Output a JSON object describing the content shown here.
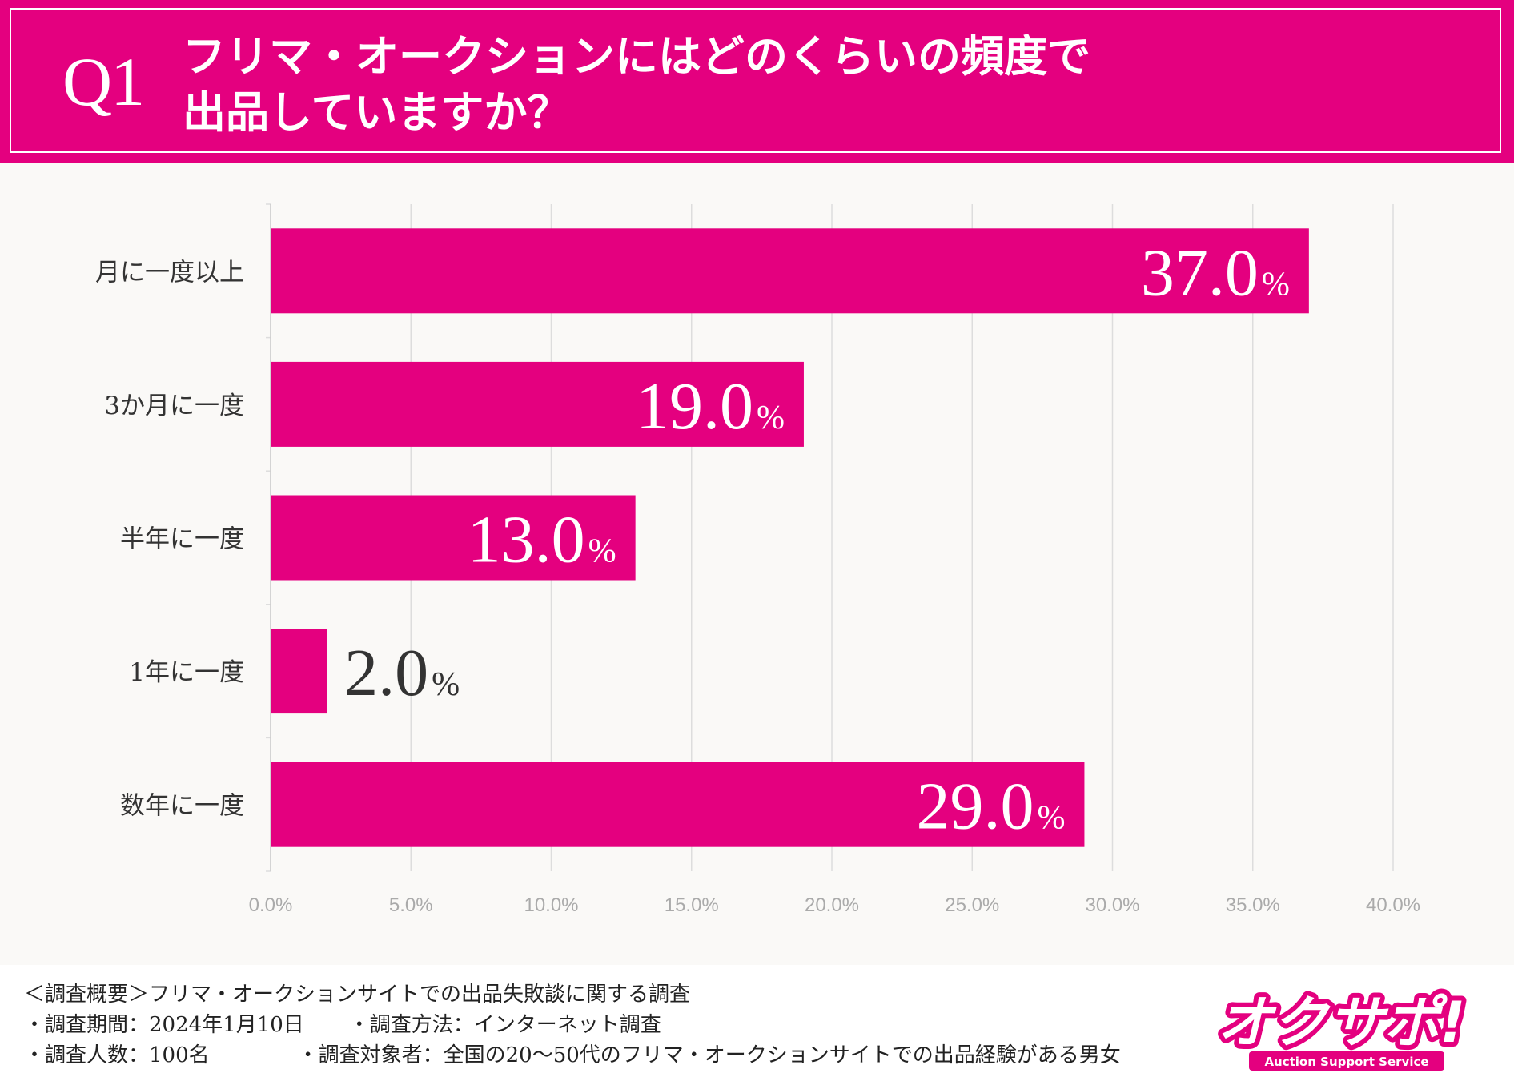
{
  "header": {
    "q_label": "Q1",
    "line1": "フリマ・オークションにはどのくらいの頻度で",
    "line2": "出品していますか？"
  },
  "colors": {
    "brand": "#e4007f",
    "bar": "#e4007f",
    "grid": "#dddddd",
    "axis_text": "#aaaaaa",
    "label_text": "#333333"
  },
  "chart_data": {
    "type": "bar",
    "orientation": "horizontal",
    "categories": [
      "月に一度以上",
      "3か月に一度",
      "半年に一度",
      "1年に一度",
      "数年に一度"
    ],
    "values": [
      37.0,
      19.0,
      13.0,
      2.0,
      29.0
    ],
    "value_labels": [
      "37.0",
      "19.0",
      "13.0",
      "2.0",
      "29.0"
    ],
    "value_unit": "%",
    "xlim": [
      0,
      40
    ],
    "xticks": [
      "0.0%",
      "5.0%",
      "10.0%",
      "15.0%",
      "20.0%",
      "25.0%",
      "30.0%",
      "35.0%",
      "40.0%"
    ],
    "grid": true,
    "title": "",
    "xlabel": "",
    "ylabel": ""
  },
  "footer": {
    "summary": "＜調査概要＞フリマ・オークションサイトでの出品失敗談に関する調査",
    "period": "・調査期間：2024年1月10日",
    "method": "・調査方法：インターネット調査",
    "count": "・調査人数：100名",
    "target": "・調査対象者：全国の20〜50代のフリマ・オークションサイトでの出品経験がある男女"
  },
  "logo": {
    "text": "オクサポ!",
    "subtitle": "Auction Support Service"
  }
}
